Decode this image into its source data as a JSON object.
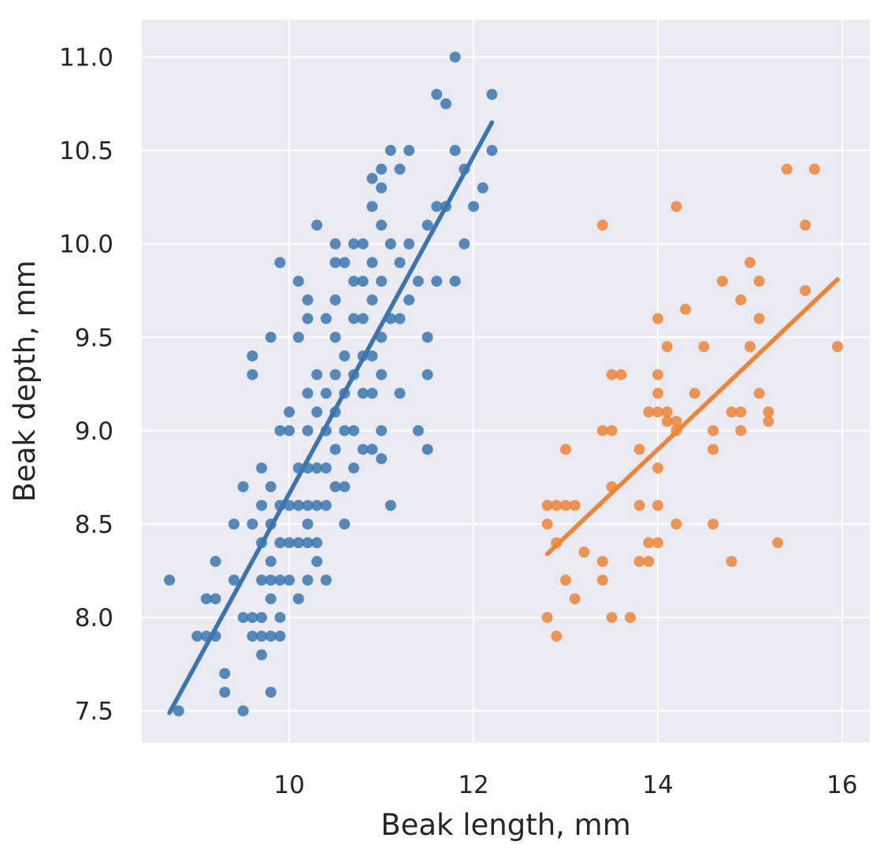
{
  "chart_data": {
    "type": "scatter",
    "title": "",
    "xlabel": "Beak length, mm",
    "ylabel": "Beak depth, mm",
    "xlim": [
      8.4,
      16.3
    ],
    "ylim": [
      7.33,
      11.2
    ],
    "xticks": [
      10,
      12,
      14,
      16
    ],
    "xtick_labels": [
      "10",
      "12",
      "14",
      "16"
    ],
    "yticks": [
      7.5,
      8.0,
      8.5,
      9.0,
      9.5,
      10.0,
      10.5,
      11.0
    ],
    "ytick_labels": [
      "7.5",
      "8.0",
      "8.5",
      "9.0",
      "9.5",
      "10.0",
      "10.5",
      "11.0"
    ],
    "grid": true,
    "legend": false,
    "background_color": "#eaeaf2",
    "series": [
      {
        "color": "#3a75b0",
        "regression": {
          "x": [
            8.7,
            12.2
          ],
          "y": [
            7.49,
            10.65
          ]
        },
        "x": [
          8.7,
          8.8,
          9.0,
          9.1,
          9.1,
          9.2,
          9.2,
          9.2,
          9.3,
          9.3,
          9.4,
          9.4,
          9.5,
          9.5,
          9.5,
          9.6,
          9.6,
          9.6,
          9.6,
          9.6,
          9.7,
          9.7,
          9.7,
          9.7,
          9.7,
          9.7,
          9.7,
          9.8,
          9.8,
          9.8,
          9.8,
          9.8,
          9.8,
          9.8,
          9.8,
          9.9,
          9.9,
          9.9,
          9.9,
          9.9,
          9.9,
          9.9,
          10.0,
          10.0,
          10.0,
          10.0,
          10.0,
          10.1,
          10.1,
          10.1,
          10.1,
          10.1,
          10.1,
          10.2,
          10.2,
          10.2,
          10.2,
          10.2,
          10.2,
          10.2,
          10.2,
          10.2,
          10.3,
          10.3,
          10.3,
          10.3,
          10.3,
          10.3,
          10.3,
          10.4,
          10.4,
          10.4,
          10.4,
          10.4,
          10.4,
          10.5,
          10.5,
          10.5,
          10.5,
          10.5,
          10.5,
          10.5,
          10.5,
          10.6,
          10.6,
          10.6,
          10.6,
          10.6,
          10.6,
          10.7,
          10.7,
          10.7,
          10.7,
          10.7,
          10.7,
          10.8,
          10.8,
          10.8,
          10.8,
          10.8,
          10.8,
          10.9,
          10.9,
          10.9,
          10.9,
          10.9,
          10.9,
          10.9,
          11.0,
          11.0,
          11.0,
          11.0,
          11.0,
          11.0,
          11.0,
          11.0,
          11.1,
          11.1,
          11.1,
          11.1,
          11.2,
          11.2,
          11.2,
          11.2,
          11.3,
          11.3,
          11.3,
          11.4,
          11.4,
          11.5,
          11.5,
          11.5,
          11.5,
          11.6,
          11.6,
          11.6,
          11.7,
          11.7,
          11.8,
          11.8,
          11.8,
          11.9,
          11.9,
          12.0,
          12.1,
          12.2,
          12.2
        ],
        "y": [
          8.2,
          7.5,
          7.9,
          8.1,
          7.9,
          8.3,
          8.1,
          7.9,
          7.6,
          7.7,
          8.2,
          8.5,
          7.5,
          8.0,
          8.7,
          9.3,
          9.4,
          8.5,
          8.0,
          7.9,
          8.8,
          8.2,
          8.0,
          7.9,
          7.8,
          8.6,
          8.4,
          7.6,
          7.9,
          8.5,
          8.7,
          8.1,
          8.3,
          9.5,
          8.2,
          9.9,
          9.0,
          8.6,
          8.4,
          8.2,
          8.0,
          7.9,
          9.0,
          8.6,
          8.4,
          8.2,
          9.1,
          9.8,
          9.5,
          8.8,
          8.6,
          8.4,
          8.1,
          9.2,
          9.0,
          8.8,
          8.6,
          8.5,
          8.4,
          8.2,
          9.6,
          9.7,
          10.1,
          9.3,
          9.1,
          8.8,
          8.6,
          8.4,
          8.3,
          9.6,
          9.2,
          9.0,
          8.8,
          8.6,
          8.2,
          10.0,
          9.9,
          9.7,
          9.5,
          9.3,
          9.1,
          8.9,
          8.7,
          9.9,
          9.4,
          9.2,
          9.0,
          8.7,
          8.5,
          10.0,
          9.8,
          9.6,
          9.3,
          9.0,
          8.8,
          10.0,
          9.8,
          9.6,
          9.4,
          9.2,
          8.9,
          10.35,
          10.2,
          9.9,
          9.7,
          9.4,
          9.2,
          8.9,
          10.4,
          10.1,
          9.8,
          9.5,
          9.3,
          9.0,
          8.85,
          10.3,
          10.5,
          10.0,
          9.6,
          8.6,
          10.4,
          9.9,
          9.6,
          9.2,
          10.5,
          10.0,
          9.7,
          9.0,
          9.8,
          10.1,
          9.5,
          9.3,
          8.9,
          10.8,
          10.2,
          9.8,
          10.75,
          10.2,
          11.0,
          10.5,
          9.8,
          10.4,
          10.0,
          10.2,
          10.3,
          10.5,
          10.8
        ]
      },
      {
        "color": "#ee8536",
        "regression": {
          "x": [
            12.8,
            15.95
          ],
          "y": [
            8.34,
            9.81
          ]
        },
        "x": [
          12.8,
          12.8,
          12.8,
          12.9,
          12.9,
          12.9,
          13.0,
          13.0,
          13.0,
          13.1,
          13.1,
          13.2,
          13.4,
          13.4,
          13.4,
          13.4,
          13.5,
          13.5,
          13.5,
          13.5,
          13.6,
          13.7,
          13.8,
          13.8,
          13.8,
          13.9,
          13.9,
          13.9,
          14.0,
          14.0,
          14.0,
          14.0,
          14.0,
          14.0,
          14.0,
          14.1,
          14.1,
          14.1,
          14.2,
          14.2,
          14.2,
          14.2,
          14.3,
          14.4,
          14.5,
          14.6,
          14.6,
          14.6,
          14.7,
          14.8,
          14.8,
          14.9,
          14.9,
          14.9,
          15.0,
          15.0,
          15.1,
          15.1,
          15.1,
          15.2,
          15.2,
          15.3,
          15.4,
          15.6,
          15.6,
          15.7,
          15.95
        ],
        "y": [
          8.0,
          8.5,
          8.6,
          7.9,
          8.4,
          8.6,
          8.2,
          8.6,
          8.9,
          8.1,
          8.6,
          8.35,
          8.2,
          8.3,
          9.0,
          10.1,
          8.0,
          8.7,
          9.3,
          9.0,
          9.3,
          8.0,
          8.6,
          8.9,
          8.3,
          8.4,
          9.1,
          8.3,
          8.4,
          8.6,
          8.8,
          9.1,
          9.3,
          9.6,
          9.2,
          9.05,
          9.45,
          9.1,
          9.0,
          8.5,
          9.05,
          10.2,
          9.65,
          9.2,
          9.45,
          8.5,
          8.9,
          9.0,
          9.8,
          9.1,
          8.3,
          9.0,
          9.1,
          9.7,
          9.45,
          9.9,
          9.6,
          9.2,
          9.8,
          9.05,
          9.1,
          8.4,
          10.4,
          9.75,
          10.1,
          10.4,
          9.45
        ]
      }
    ]
  }
}
